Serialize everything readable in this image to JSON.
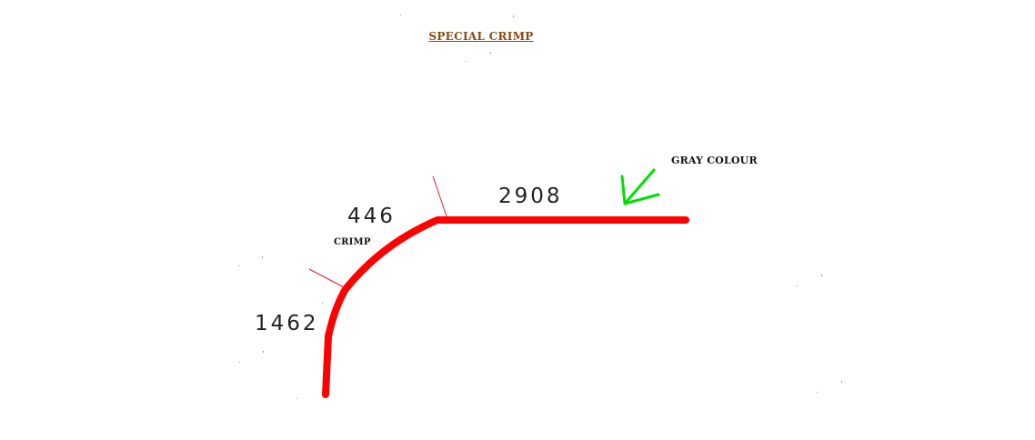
{
  "title": "SPECIAL CRIMP",
  "labels": {
    "segment_top": "2908",
    "segment_crimp": "446",
    "segment_side": "1462",
    "crimp_note": "CRIMP",
    "colour_note": "GRAY COLOUR"
  },
  "colors": {
    "profile": "#ff0000",
    "arrow": "#00e000",
    "title": "#8a4a12",
    "tick": "#e02020"
  }
}
